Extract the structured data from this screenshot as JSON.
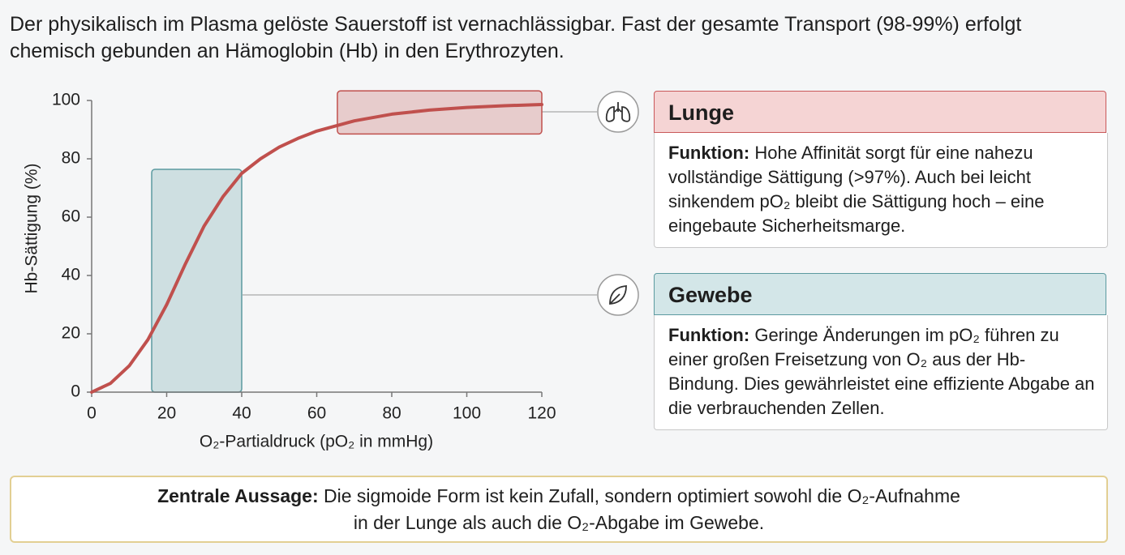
{
  "intro": "Der physikalisch im Plasma gelöste Sauerstoff ist vernachlässigbar. Fast der gesamte Transport (98-99%) erfolgt chemisch gebunden an Hämoglobin (Hb) in den Erythrozyten.",
  "chart_data": {
    "type": "line",
    "xlabel": "O₂-Partialdruck (pO₂ in mmHg)",
    "ylabel": "Hb-Sättigung (%)",
    "x": [
      0,
      5,
      10,
      15,
      20,
      25,
      30,
      35,
      40,
      45,
      50,
      55,
      60,
      70,
      80,
      90,
      100,
      110,
      120
    ],
    "series": [
      {
        "color": "#c0504d",
        "values": [
          0,
          3,
          9,
          18,
          30,
          44,
          57,
          67,
          75,
          80,
          84,
          87,
          89.5,
          93,
          95.3,
          96.7,
          97.6,
          98.2,
          98.6
        ]
      }
    ],
    "xlim": [
      0,
      120
    ],
    "ylim": [
      0,
      100
    ],
    "xticks": [
      0,
      20,
      40,
      60,
      80,
      100,
      120
    ],
    "yticks": [
      0,
      20,
      40,
      60,
      80,
      100
    ],
    "regions": [
      {
        "xlim": [
          65.5,
          120
        ],
        "ylim": [
          88.5,
          103.3
        ],
        "color": "#c0504d"
      },
      {
        "xlim": [
          16,
          40
        ],
        "ylim": [
          0,
          76.4
        ],
        "color": "#5c9aa0"
      }
    ]
  },
  "panels": [
    {
      "title": "Lunge",
      "label": "Funktion:",
      "text": "Hohe Affinität sorgt für eine nahezu vollständige Sättigung (>97%). Auch bei leicht sinkendem pO₂ bleibt die Sättigung hoch – eine eingebaute Sicherheitsmarge."
    },
    {
      "title": "Gewebe",
      "label": "Funktion:",
      "text": "Geringe Änderungen im pO₂ führen zu einer großen Freisetzung von O₂ aus der Hb-Bindung. Dies gewährleistet eine effiziente Abgabe an die verbrauchenden Zellen."
    }
  ],
  "key_message": {
    "label": "Zentrale Aussage:",
    "text": "Die sigmoide Form ist kein Zufall, sondern optimiert sowohl die O₂-Aufnahme in der Lunge als auch die O₂-Abgabe im Gewebe."
  }
}
